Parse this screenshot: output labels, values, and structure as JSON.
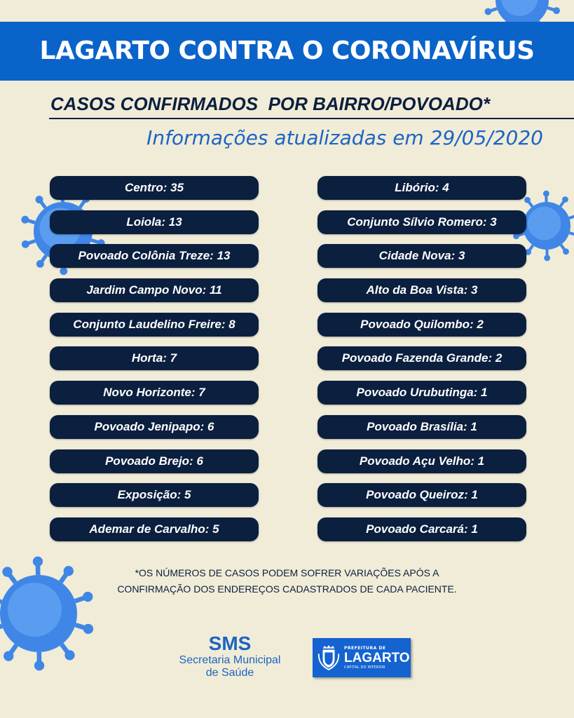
{
  "header": {
    "title": "LAGARTO CONTRA O CORONAVÍRUS"
  },
  "subtitle": "CASOS CONFIRMADOS  POR BAIRRO/POVOADO*",
  "updated": "Informações atualizadas em 29/05/2020",
  "left_column": [
    "Centro: 35",
    "Loiola: 13",
    "Povoado Colônia Treze: 13",
    "Jardim Campo Novo: 11",
    "Conjunto Laudelino Freire: 8",
    "Horta: 7",
    "Novo Horizonte: 7",
    "Povoado Jenipapo: 6",
    "Povoado Brejo: 6",
    "Exposição: 5",
    "Ademar de Carvalho: 5"
  ],
  "right_column": [
    "Libório: 4",
    "Conjunto Sílvio Romero: 3",
    "Cidade Nova: 3",
    "Alto da Boa Vista: 3",
    "Povoado Quilombo: 2",
    "Povoado Fazenda Grande: 2",
    "Povoado Urubutinga: 1",
    "Povoado Brasília: 1",
    "Povoado Açu Velho: 1",
    "Povoado Queiroz: 1",
    "Povoado Carcará: 1"
  ],
  "note": {
    "line1": "*OS NÚMEROS DE CASOS PODEM SOFRER VARIAÇÕES APÓS A",
    "line2": "CONFIRMAÇÃO DOS ENDEREÇOS CADASTRADOS DE CADA PACIENTE."
  },
  "footer": {
    "sms": {
      "abbr": "SMS",
      "name1": "Secretaria Municipal",
      "name2": "de Saúde"
    },
    "prefeitura": {
      "top": "PREFEITURA DE",
      "name": "LAGARTO",
      "tagline": "CAPITAL DO INTERIOR"
    }
  },
  "colors": {
    "banner": "#0a63c9",
    "pill": "#0b1f3f",
    "accent_text": "#1b64c4",
    "background": "#f1ecd7",
    "virus": "#3f86e6"
  }
}
